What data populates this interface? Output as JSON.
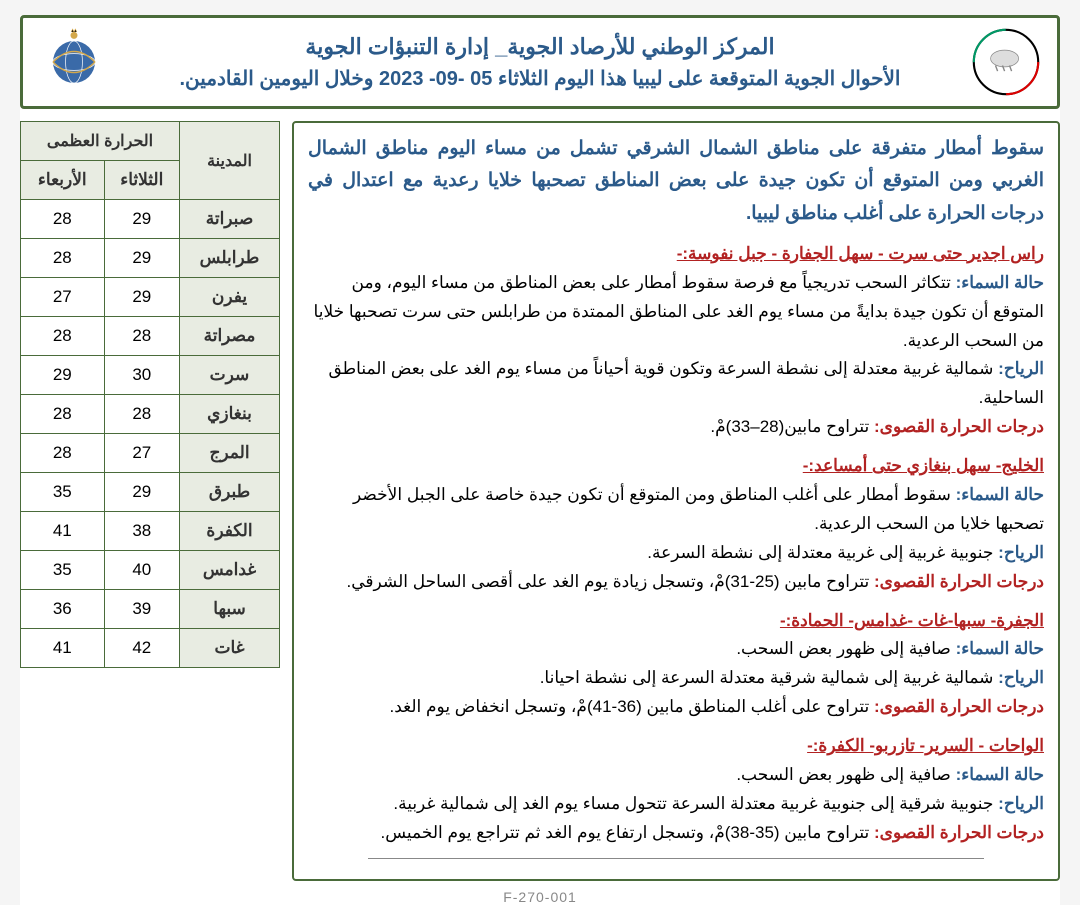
{
  "header": {
    "title": "المركز الوطني للأرصاد الجوية_ إدارة التنبؤات الجوية",
    "subtitle": "الأحوال الجوية المتوقعة على ليبيا هذا اليوم الثلاثاء 05 -09- 2023 وخلال اليومين القادمين."
  },
  "summary": "سقوط أمطار متفرقة على مناطق الشمال الشرقي تشمل من مساء اليوم مناطق الشمال الغربي ومن المتوقع أن تكون جيدة على بعض المناطق تصحبها خلايا رعدية مع اعتدال في درجات الحرارة على أغلب مناطق ليبيا.",
  "regions": [
    {
      "title": "راس اجدير حتى سرت - سهل الجفارة - جبل نفوسة:-",
      "sky_label": "حالة السماء:",
      "sky": " تتكاثر السحب تدريجياً مع فرصة سقوط أمطار على بعض المناطق من مساء اليوم، ومن المتوقع أن تكون جيدة بدايةً من مساء يوم الغد على المناطق الممتدة من طرابلس حتى سرت تصحبها خلايا من السحب الرعدية.",
      "wind_label": "الرياح:",
      "wind": " شمالية غربية معتدلة إلى نشطة السرعة وتكون قوية أحياناً من مساء يوم الغد على بعض المناطق الساحلية.",
      "temp_label": "درجات الحرارة القصوى:",
      "temp": " تتراوح مابين(28–33)مْ."
    },
    {
      "title": "الخليج- سهل بنغازي حتى أمساعد:-",
      "sky_label": "حالة السماء:",
      "sky": " سقوط أمطار على أغلب المناطق ومن المتوقع أن تكون جيدة خاصة على الجبل الأخضر تصحبها خلايا من السحب الرعدية.",
      "wind_label": "الرياح:",
      "wind": " جنوبية غربية إلى غربية معتدلة إلى نشطة السرعة.",
      "temp_label": "درجات الحرارة القصوى:",
      "temp": " تتراوح مابين (25-31)مْ، وتسجل زيادة يوم الغد على أقصى الساحل الشرقي."
    },
    {
      "title": "الجفرة- سبها-غات -غدامس- الحمادة:-",
      "sky_label": "حالة السماء:",
      "sky": " صافية إلى ظهور بعض السحب.",
      "wind_label": "الرياح:",
      "wind": " شمالية غربية  إلى شمالية شرقية معتدلة السرعة إلى نشطة احيانا.",
      "temp_label": "درجات الحرارة القصوى:",
      "temp": " تتراوح على أغلب المناطق مابين (36-41)مْ، وتسجل انخفاض يوم الغد."
    },
    {
      "title": "الواحات - السرير- تازربو- الكفرة:-",
      "sky_label": "حالة السماء:",
      "sky": " صافية إلى ظهور بعض السحب.",
      "wind_label": "الرياح:",
      "wind": " جنوبية شرقية إلى جنوبية غربية معتدلة السرعة تتحول مساء يوم الغد إلى شمالية غربية.",
      "temp_label": "درجات الحرارة القصوى:",
      "temp": " تتراوح مابين (35-38)مْ، وتسجل ارتفاع يوم الغد ثم تتراجع يوم الخميس."
    }
  ],
  "table": {
    "city_header": "المدينة",
    "max_temp_header": "الحرارة العظمى",
    "day1": "الثلاثاء",
    "day2": "الأربعاء",
    "rows": [
      {
        "city": "صبراتة",
        "d1": "29",
        "d2": "28"
      },
      {
        "city": "طرابلس",
        "d1": "29",
        "d2": "28"
      },
      {
        "city": "يفرن",
        "d1": "29",
        "d2": "27"
      },
      {
        "city": "مصراتة",
        "d1": "28",
        "d2": "28"
      },
      {
        "city": "سرت",
        "d1": "30",
        "d2": "29"
      },
      {
        "city": "بنغازي",
        "d1": "28",
        "d2": "28"
      },
      {
        "city": "المرج",
        "d1": "27",
        "d2": "28"
      },
      {
        "city": "طبرق",
        "d1": "29",
        "d2": "35"
      },
      {
        "city": "الكفرة",
        "d1": "38",
        "d2": "41"
      },
      {
        "city": "غدامس",
        "d1": "40",
        "d2": "35"
      },
      {
        "city": "سبها",
        "d1": "39",
        "d2": "36"
      },
      {
        "city": "غات",
        "d1": "42",
        "d2": "41"
      }
    ]
  },
  "footer": "F-270-001",
  "colors": {
    "border": "#4a6b3a",
    "header_text": "#2b5a8a",
    "region_title": "#b22222",
    "table_header_bg": "#e8ece2"
  }
}
